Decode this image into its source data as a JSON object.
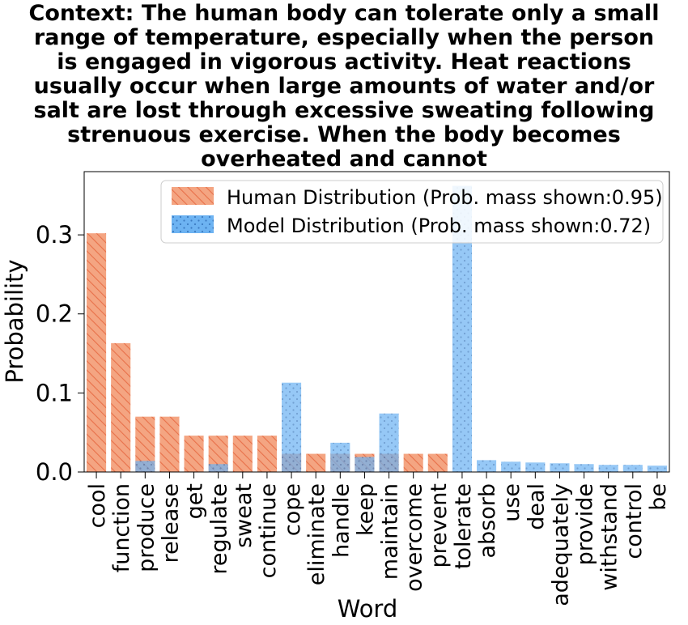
{
  "chart_data": {
    "type": "bar",
    "title_lines": [
      "Context: The human body can tolerate only a small",
      "range of temperature, especially when the person",
      "is engaged in vigorous activity. Heat reactions",
      "usually occur when large amounts of water and/or",
      "salt are lost through excessive sweating following",
      "strenuous exercise. When the body becomes",
      "overheated and cannot"
    ],
    "xlabel": "Word",
    "ylabel": "Probability",
    "ylim": [
      0,
      0.38
    ],
    "yticks": [
      0.0,
      0.1,
      0.2,
      0.3
    ],
    "ytick_labels": [
      "0.0",
      "0.1",
      "0.2",
      "0.3"
    ],
    "categories": [
      "cool",
      "function",
      "produce",
      "release",
      "get",
      "regulate",
      "sweat",
      "continue",
      "cope",
      "eliminate",
      "handle",
      "keep",
      "maintain",
      "overcome",
      "prevent",
      "tolerate",
      "absorb",
      "use",
      "deal",
      "adequately",
      "provide",
      "withstand",
      "control",
      "be"
    ],
    "series": [
      {
        "name": "Human Distribution (Prob. mass shown:0.95)",
        "color": "#f4a582",
        "hatch_color": "#e8714a",
        "pattern": "diagonal-hatch",
        "values": [
          0.302,
          0.163,
          0.07,
          0.07,
          0.046,
          0.046,
          0.046,
          0.046,
          0.023,
          0.023,
          0.023,
          0.023,
          0.023,
          0.023,
          0.023,
          0,
          0,
          0,
          0,
          0,
          0,
          0,
          0,
          0
        ]
      },
      {
        "name": "Model Distribution (Prob. mass shown:0.72)",
        "color": "#5aa9f0",
        "dot_color": "#3a7fc8",
        "pattern": "dots",
        "values": [
          0,
          0,
          0.014,
          0,
          0,
          0.01,
          0,
          0,
          0.113,
          0,
          0.037,
          0.019,
          0.074,
          0,
          0,
          0.362,
          0.015,
          0.013,
          0.012,
          0.011,
          0.01,
          0.009,
          0.009,
          0.008
        ]
      }
    ],
    "legend_position": "top-right",
    "grid": false
  }
}
